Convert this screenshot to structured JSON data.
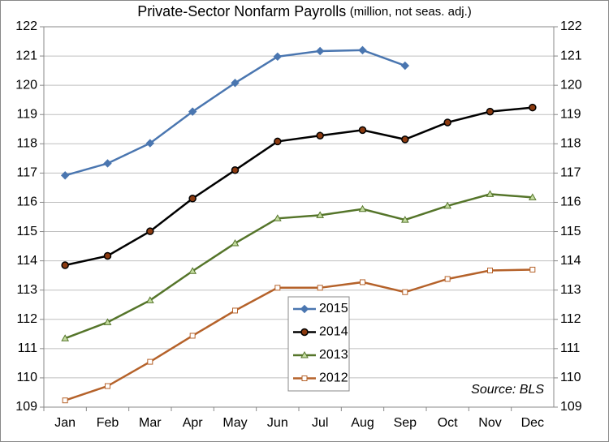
{
  "chart_data": {
    "type": "line",
    "title": "Private-Sector Nonfarm Payrolls",
    "subtitle": "(million, not seas. adj.)",
    "annotation": "Source: BLS",
    "categories": [
      "Jan",
      "Feb",
      "Mar",
      "Apr",
      "May",
      "Jun",
      "Jul",
      "Aug",
      "Sep",
      "Oct",
      "Nov",
      "Dec"
    ],
    "series": [
      {
        "name": "2015",
        "color": "#4a76b0",
        "marker": "diamond",
        "marker_fill": "#4a76b0",
        "values": [
          116.92,
          117.33,
          118.02,
          119.1,
          120.08,
          120.98,
          121.17,
          121.2,
          120.67,
          null,
          null,
          null
        ]
      },
      {
        "name": "2014",
        "color": "#000000",
        "marker": "circle",
        "marker_fill": "#8b3a10",
        "values": [
          113.85,
          114.17,
          115.01,
          116.13,
          117.1,
          118.08,
          118.28,
          118.47,
          118.15,
          118.73,
          119.1,
          119.24
        ]
      },
      {
        "name": "2013",
        "color": "#55752a",
        "marker": "triangle",
        "marker_fill": "#c4dca0",
        "values": [
          111.35,
          111.9,
          112.65,
          113.65,
          114.6,
          115.45,
          115.56,
          115.77,
          115.4,
          115.88,
          116.28,
          116.17
        ]
      },
      {
        "name": "2012",
        "color": "#b5622a",
        "marker": "square",
        "marker_fill": "#ffffff",
        "values": [
          109.23,
          109.72,
          110.55,
          111.44,
          112.3,
          113.08,
          113.08,
          113.27,
          112.93,
          113.38,
          113.67,
          113.7
        ]
      }
    ],
    "ylim": [
      109,
      122
    ],
    "yticks": [
      109,
      110,
      111,
      112,
      113,
      114,
      115,
      116,
      117,
      118,
      119,
      120,
      121,
      122
    ],
    "y2lim": [
      109,
      122
    ],
    "y2ticks": [
      109,
      110,
      111,
      112,
      113,
      114,
      115,
      116,
      117,
      118,
      119,
      120,
      121,
      122
    ],
    "grid": true,
    "legend": "bottom-center"
  }
}
